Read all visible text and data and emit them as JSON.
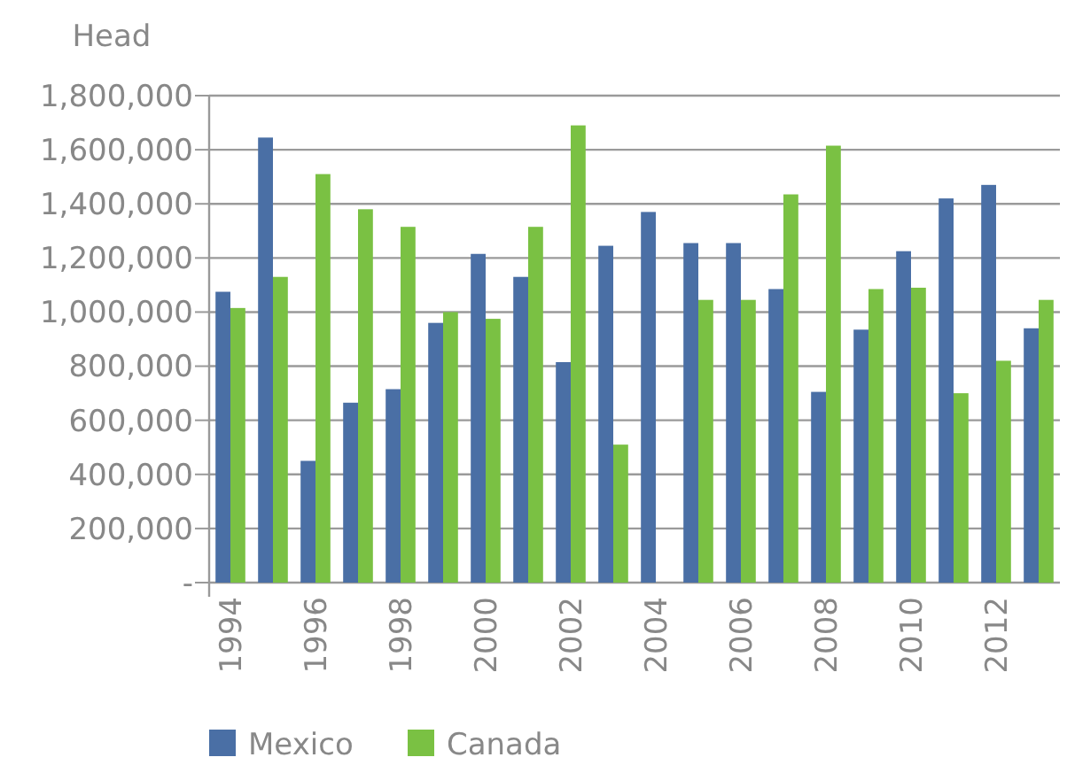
{
  "chart_data": {
    "type": "bar",
    "ylabel": "Head",
    "categories": [
      "1994",
      null,
      "1996",
      null,
      "1998",
      null,
      "2000",
      null,
      "2002",
      null,
      "2004",
      null,
      "2006",
      null,
      "2008",
      null,
      "2010",
      null,
      "2012",
      null
    ],
    "series": [
      {
        "name": "Mexico",
        "color": "#4a6fa5",
        "values": [
          1075000,
          1645000,
          450000,
          665000,
          715000,
          960000,
          1215000,
          1130000,
          815000,
          1245000,
          1370000,
          1255000,
          1255000,
          1085000,
          705000,
          935000,
          1225000,
          1420000,
          1470000,
          940000
        ]
      },
      {
        "name": "Canada",
        "color": "#7ac143",
        "values": [
          1015000,
          1130000,
          1510000,
          1380000,
          1315000,
          1000000,
          975000,
          1315000,
          1690000,
          510000,
          null,
          1045000,
          1045000,
          1435000,
          1615000,
          1085000,
          1090000,
          700000,
          820000,
          1045000
        ]
      }
    ],
    "ylim": [
      0,
      1800000
    ],
    "yticks": [
      {
        "value": 0,
        "label": "-"
      },
      {
        "value": 200000,
        "label": "200,000"
      },
      {
        "value": 400000,
        "label": "400,000"
      },
      {
        "value": 600000,
        "label": "600,000"
      },
      {
        "value": 800000,
        "label": "800,000"
      },
      {
        "value": 1000000,
        "label": "1,000,000"
      },
      {
        "value": 1200000,
        "label": "1,200,000"
      },
      {
        "value": 1400000,
        "label": "1,400,000"
      },
      {
        "value": 1600000,
        "label": "1,600,000"
      },
      {
        "value": 1800000,
        "label": "1,800,000"
      }
    ],
    "grid": "y",
    "legend": "bottom left"
  }
}
